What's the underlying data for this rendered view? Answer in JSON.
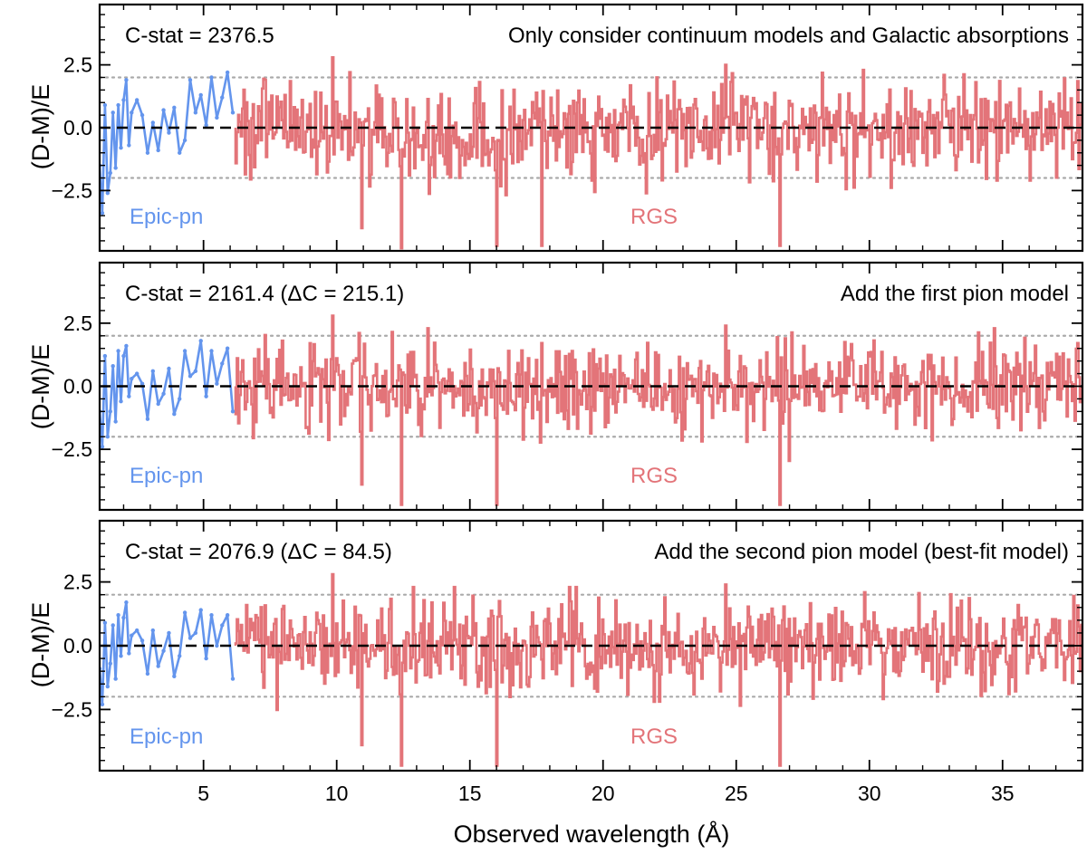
{
  "figure": {
    "xlabel": "Observed wavelength (Å)",
    "ylabel": "(D-M)/E"
  },
  "colors": {
    "epic": "#6495ED",
    "rgs": "#E37479",
    "zero_line": "#000000",
    "dotted_lines": "#AAAAAA",
    "frame": "#000000"
  },
  "chart_data": [
    {
      "type": "line",
      "panel": "top",
      "title": "",
      "stat_label": "C-stat = 2376.5",
      "annotation": "Only consider continuum models and Galactic absorptions",
      "epic_label": "Epic-pn",
      "rgs_label": "RGS",
      "xlim": [
        1.1,
        38.0
      ],
      "ylim": [
        -4.9,
        4.9
      ],
      "xticks": [
        5,
        10,
        15,
        20,
        25,
        30,
        35
      ],
      "yticks": [
        -2.5,
        0.0,
        2.5
      ],
      "ytick_labels": [
        "−2.5",
        "0.0",
        "2.5"
      ],
      "reference_lines": [
        0.0,
        2.0,
        -2.0
      ],
      "legend_position": "none",
      "series": [
        {
          "name": "Epic-pn",
          "x": [
            1.1,
            1.2,
            1.3,
            1.4,
            1.5,
            1.6,
            1.7,
            1.8,
            1.9,
            2.0,
            2.1,
            2.2,
            2.3,
            2.5,
            2.7,
            2.9,
            3.1,
            3.3,
            3.5,
            3.7,
            3.9,
            4.1,
            4.3,
            4.5,
            4.7,
            4.9,
            5.1,
            5.3,
            5.5,
            5.7,
            5.9,
            6.1
          ],
          "values": [
            -1.5,
            -3.4,
            0.9,
            -2.6,
            -1.8,
            0.6,
            -1.6,
            0.9,
            -0.8,
            1.1,
            1.9,
            -0.7,
            0.6,
            1.1,
            0.5,
            -1.0,
            0.2,
            -0.9,
            0.7,
            -0.2,
            0.8,
            -1.0,
            -0.5,
            1.9,
            0.6,
            1.3,
            0.1,
            2.0,
            0.4,
            1.2,
            2.2,
            0.6
          ]
        },
        {
          "name": "RGS",
          "x_start": 6.2,
          "x_end": 38.0,
          "bins": 640,
          "seed": 101,
          "spread": 0.95,
          "sigma": 1.0,
          "deep_dips": [
            {
              "x": 10.9,
              "y": -4.0
            },
            {
              "x": 12.4,
              "y": -4.8
            },
            {
              "x": 16.0,
              "y": -4.7
            },
            {
              "x": 17.7,
              "y": -4.7
            },
            {
              "x": 26.6,
              "y": -4.7
            }
          ],
          "spikes": [
            {
              "x": 9.85,
              "y": 2.8
            },
            {
              "x": 24.6,
              "y": 2.5
            }
          ]
        }
      ]
    },
    {
      "type": "line",
      "panel": "middle",
      "title": "",
      "stat_label": "C-stat = 2161.4 (ΔC = 215.1)",
      "annotation": "Add the first pion model",
      "epic_label": "Epic-pn",
      "rgs_label": "RGS",
      "xlim": [
        1.1,
        38.0
      ],
      "ylim": [
        -4.9,
        4.9
      ],
      "xticks": [
        5,
        10,
        15,
        20,
        25,
        30,
        35
      ],
      "yticks": [
        -2.5,
        0.0,
        2.5
      ],
      "ytick_labels": [
        "−2.5",
        "0.0",
        "2.5"
      ],
      "reference_lines": [
        0.0,
        2.0,
        -2.0
      ],
      "legend_position": "none",
      "series": [
        {
          "name": "Epic-pn",
          "x": [
            1.1,
            1.2,
            1.3,
            1.4,
            1.5,
            1.6,
            1.7,
            1.8,
            1.9,
            2.0,
            2.1,
            2.2,
            2.3,
            2.5,
            2.7,
            2.9,
            3.1,
            3.3,
            3.5,
            3.7,
            3.9,
            4.1,
            4.3,
            4.5,
            4.7,
            4.9,
            5.1,
            5.3,
            5.5,
            5.7,
            5.9,
            6.1
          ],
          "values": [
            -1.0,
            -2.4,
            1.2,
            -2.0,
            -1.0,
            0.8,
            -1.4,
            1.4,
            -0.6,
            1.2,
            1.6,
            -0.4,
            0.3,
            0.5,
            0.1,
            -1.3,
            0.6,
            -0.7,
            -0.3,
            0.7,
            -1.1,
            -0.5,
            1.4,
            0.4,
            0.6,
            1.8,
            -0.4,
            1.4,
            0.1,
            0.9,
            1.5,
            -1.0
          ]
        },
        {
          "name": "RGS",
          "x_start": 6.2,
          "x_end": 38.0,
          "bins": 640,
          "seed": 202,
          "spread": 0.9,
          "sigma": 0.2,
          "deep_dips": [
            {
              "x": 10.9,
              "y": -3.9
            },
            {
              "x": 12.4,
              "y": -4.7
            },
            {
              "x": 16.0,
              "y": -4.7
            },
            {
              "x": 26.6,
              "y": -4.7
            }
          ],
          "spikes": [
            {
              "x": 9.85,
              "y": 2.8
            },
            {
              "x": 24.6,
              "y": 2.4
            }
          ]
        }
      ]
    },
    {
      "type": "line",
      "panel": "bottom",
      "title": "",
      "stat_label": "C-stat = 2076.9 (ΔC = 84.5)",
      "annotation": "Add the second pion model (best-fit model)",
      "epic_label": "Epic-pn",
      "rgs_label": "RGS",
      "xlim": [
        1.1,
        38.0
      ],
      "ylim": [
        -4.9,
        4.9
      ],
      "xticks": [
        5,
        10,
        15,
        20,
        25,
        30,
        35
      ],
      "xtick_labels": [
        "5",
        "10",
        "15",
        "20",
        "25",
        "30",
        "35"
      ],
      "yticks": [
        -2.5,
        0.0,
        2.5
      ],
      "ytick_labels": [
        "−2.5",
        "0.0",
        "2.5"
      ],
      "reference_lines": [
        0.0,
        2.0,
        -2.0
      ],
      "legend_position": "none",
      "series": [
        {
          "name": "Epic-pn",
          "x": [
            1.1,
            1.2,
            1.3,
            1.4,
            1.5,
            1.6,
            1.7,
            1.8,
            1.9,
            2.0,
            2.1,
            2.2,
            2.3,
            2.5,
            2.7,
            2.9,
            3.1,
            3.3,
            3.5,
            3.7,
            3.9,
            4.1,
            4.3,
            4.5,
            4.7,
            4.9,
            5.1,
            5.3,
            5.5,
            5.7,
            5.9,
            6.1
          ],
          "values": [
            -0.9,
            -2.3,
            0.9,
            -1.6,
            -0.7,
            0.8,
            -1.3,
            1.2,
            -0.4,
            1.1,
            1.7,
            -0.3,
            0.4,
            0.6,
            0.2,
            -1.1,
            0.6,
            -0.8,
            -0.2,
            0.5,
            -1.2,
            -0.4,
            1.3,
            0.3,
            0.5,
            1.4,
            -0.5,
            1.2,
            0.0,
            0.8,
            1.2,
            -1.3
          ]
        },
        {
          "name": "RGS",
          "x_start": 6.2,
          "x_end": 38.0,
          "bins": 640,
          "seed": 303,
          "spread": 0.88,
          "sigma": 0.0,
          "deep_dips": [
            {
              "x": 10.9,
              "y": -3.9
            },
            {
              "x": 12.4,
              "y": -4.7
            },
            {
              "x": 16.0,
              "y": -4.7
            },
            {
              "x": 26.6,
              "y": -4.7
            }
          ],
          "spikes": [
            {
              "x": 9.85,
              "y": 2.8
            },
            {
              "x": 24.6,
              "y": 2.4
            }
          ]
        }
      ]
    }
  ]
}
